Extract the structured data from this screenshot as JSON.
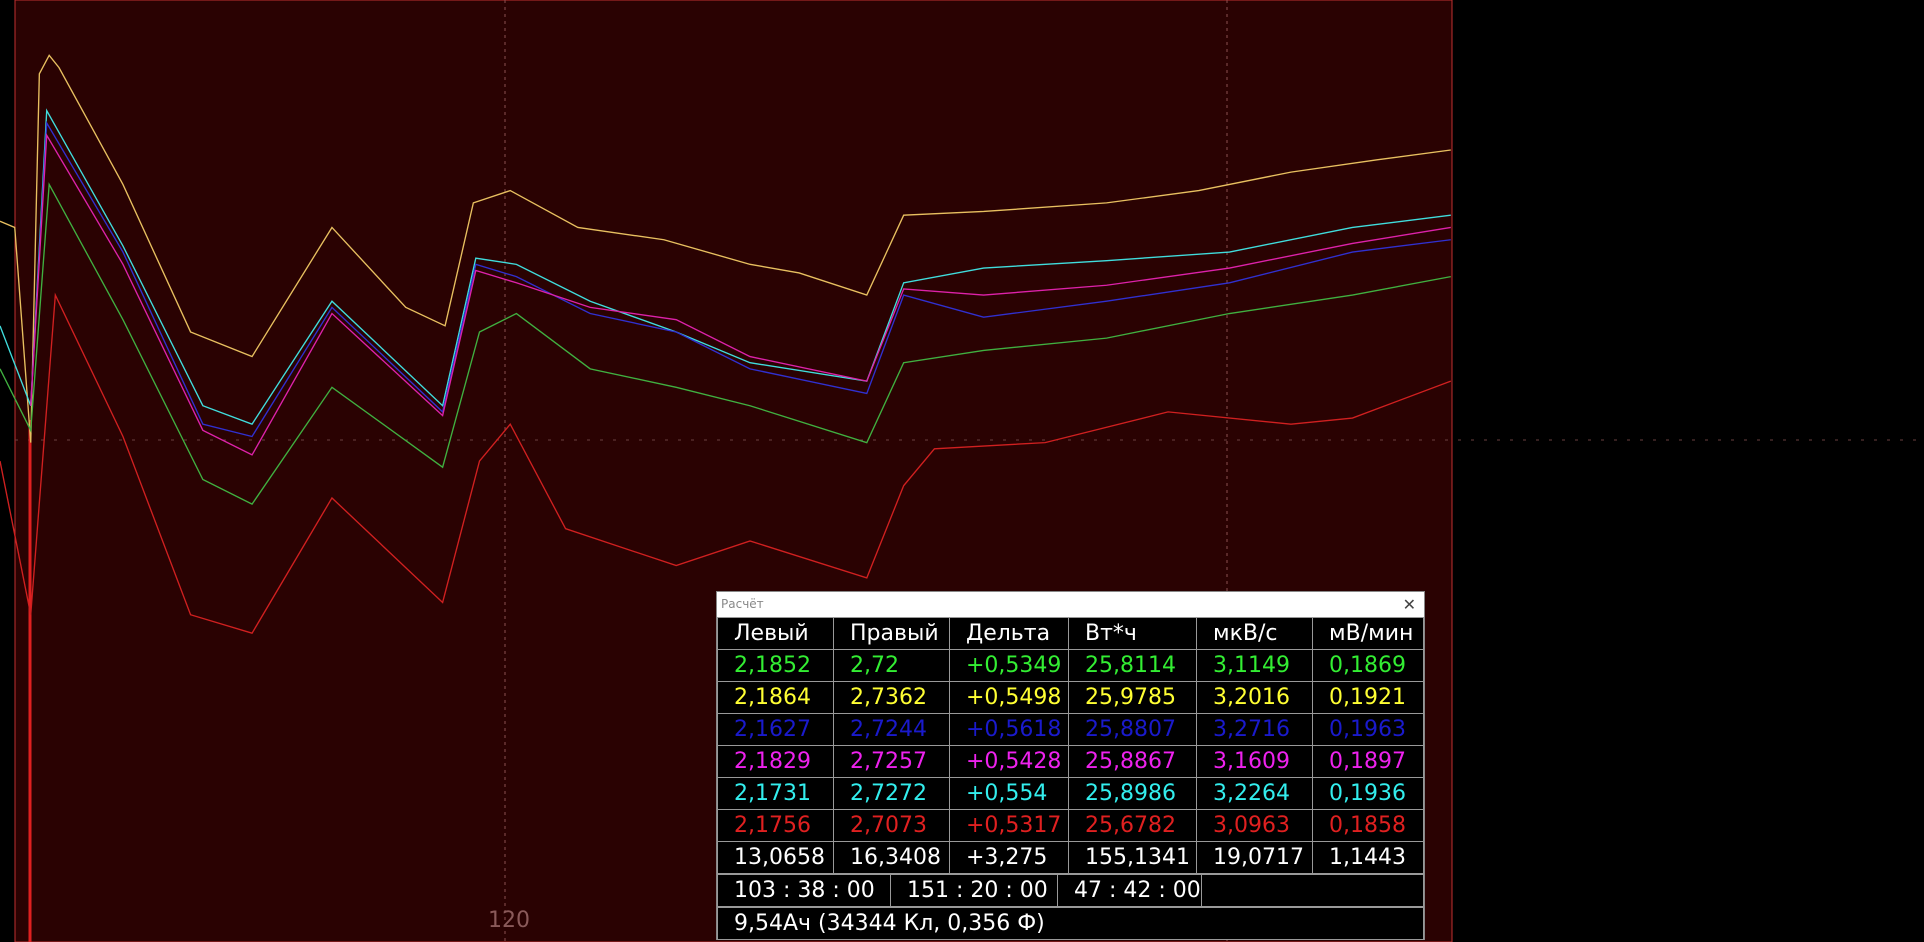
{
  "axis_label": "120",
  "popup": {
    "title": "Расчёт",
    "header": [
      "Левый",
      "Правый",
      "Дельта",
      "Вт*ч",
      "мкВ/с",
      "мВ/мин"
    ],
    "rows": [
      {
        "color": "#33ee33",
        "cells": [
          "2,1852",
          "2,72",
          "+0,5349",
          "25,8114",
          "3,1149",
          "0,1869"
        ]
      },
      {
        "color": "#ffff33",
        "cells": [
          "2,1864",
          "2,7362",
          "+0,5498",
          "25,9785",
          "3,2016",
          "0,1921"
        ]
      },
      {
        "color": "#1a1acc",
        "cells": [
          "2,1627",
          "2,7244",
          "+0,5618",
          "25,8807",
          "3,2716",
          "0,1963"
        ]
      },
      {
        "color": "#ee22ee",
        "cells": [
          "2,1829",
          "2,7257",
          "+0,5428",
          "25,8867",
          "3,1609",
          "0,1897"
        ]
      },
      {
        "color": "#33eeee",
        "cells": [
          "2,1731",
          "2,7272",
          "+0,554",
          "25,8986",
          "3,2264",
          "0,1936"
        ]
      },
      {
        "color": "#e02020",
        "cells": [
          "2,1756",
          "2,7073",
          "+0,5317",
          "25,6782",
          "3,0963",
          "0,1858"
        ]
      },
      {
        "color": "#ffffff",
        "cells": [
          "13,0658",
          "16,3408",
          "+3,275",
          "155,1341",
          "19,0717",
          "1,1443"
        ]
      }
    ],
    "times": [
      "103 : 38 : 00",
      "151 : 20 : 00",
      "47 : 42 : 00"
    ],
    "summary": "9,54Ач (34344 Кл, 0,356 Ф)"
  }
}
